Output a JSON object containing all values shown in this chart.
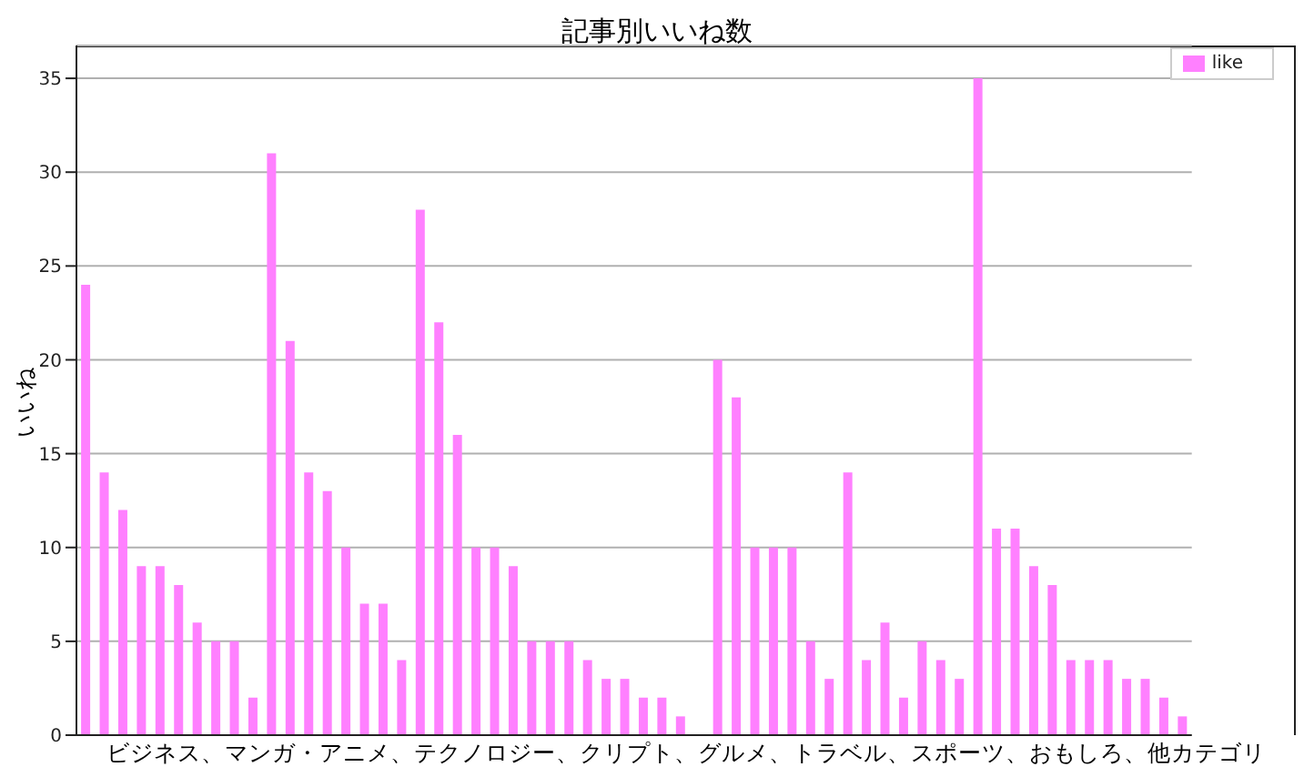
{
  "chart_data": {
    "type": "bar",
    "title": "記事別いいね数",
    "xlabel": "ビジネス、マンガ・アニメ、テクノロジー、クリプト、グルメ、トラベル、スポーツ、おもしろ、他カテゴリ",
    "ylabel": "いいね",
    "categories": [
      null,
      null,
      null,
      null,
      null,
      null,
      null,
      null,
      null,
      null,
      null,
      null,
      null,
      null,
      null,
      null,
      null,
      null,
      null,
      null,
      null,
      null,
      null,
      null,
      null,
      null,
      null,
      null,
      null,
      null,
      null,
      null,
      null,
      null,
      null,
      null,
      null,
      null,
      null,
      null,
      null,
      null,
      null,
      null,
      null,
      null,
      null,
      null,
      null,
      null,
      null,
      null,
      null,
      null,
      null,
      null,
      null,
      null,
      null,
      null
    ],
    "series": [
      {
        "name": "like",
        "color": "#ff80ff",
        "values": [
          24,
          14,
          12,
          9,
          9,
          8,
          6,
          5,
          5,
          2,
          31,
          21,
          14,
          13,
          10,
          7,
          7,
          4,
          28,
          22,
          16,
          10,
          10,
          9,
          5,
          5,
          5,
          4,
          3,
          3,
          2,
          2,
          1,
          0,
          20,
          18,
          10,
          10,
          10,
          5,
          3,
          14,
          4,
          6,
          2,
          5,
          4,
          3,
          35,
          11,
          11,
          9,
          8,
          4,
          4,
          4,
          3,
          3,
          2,
          1
        ]
      }
    ],
    "ylim": [
      0,
      36.75
    ],
    "yticks": [
      0,
      5,
      10,
      15,
      20,
      25,
      30,
      35
    ],
    "grid": "y",
    "legend": "top right"
  }
}
